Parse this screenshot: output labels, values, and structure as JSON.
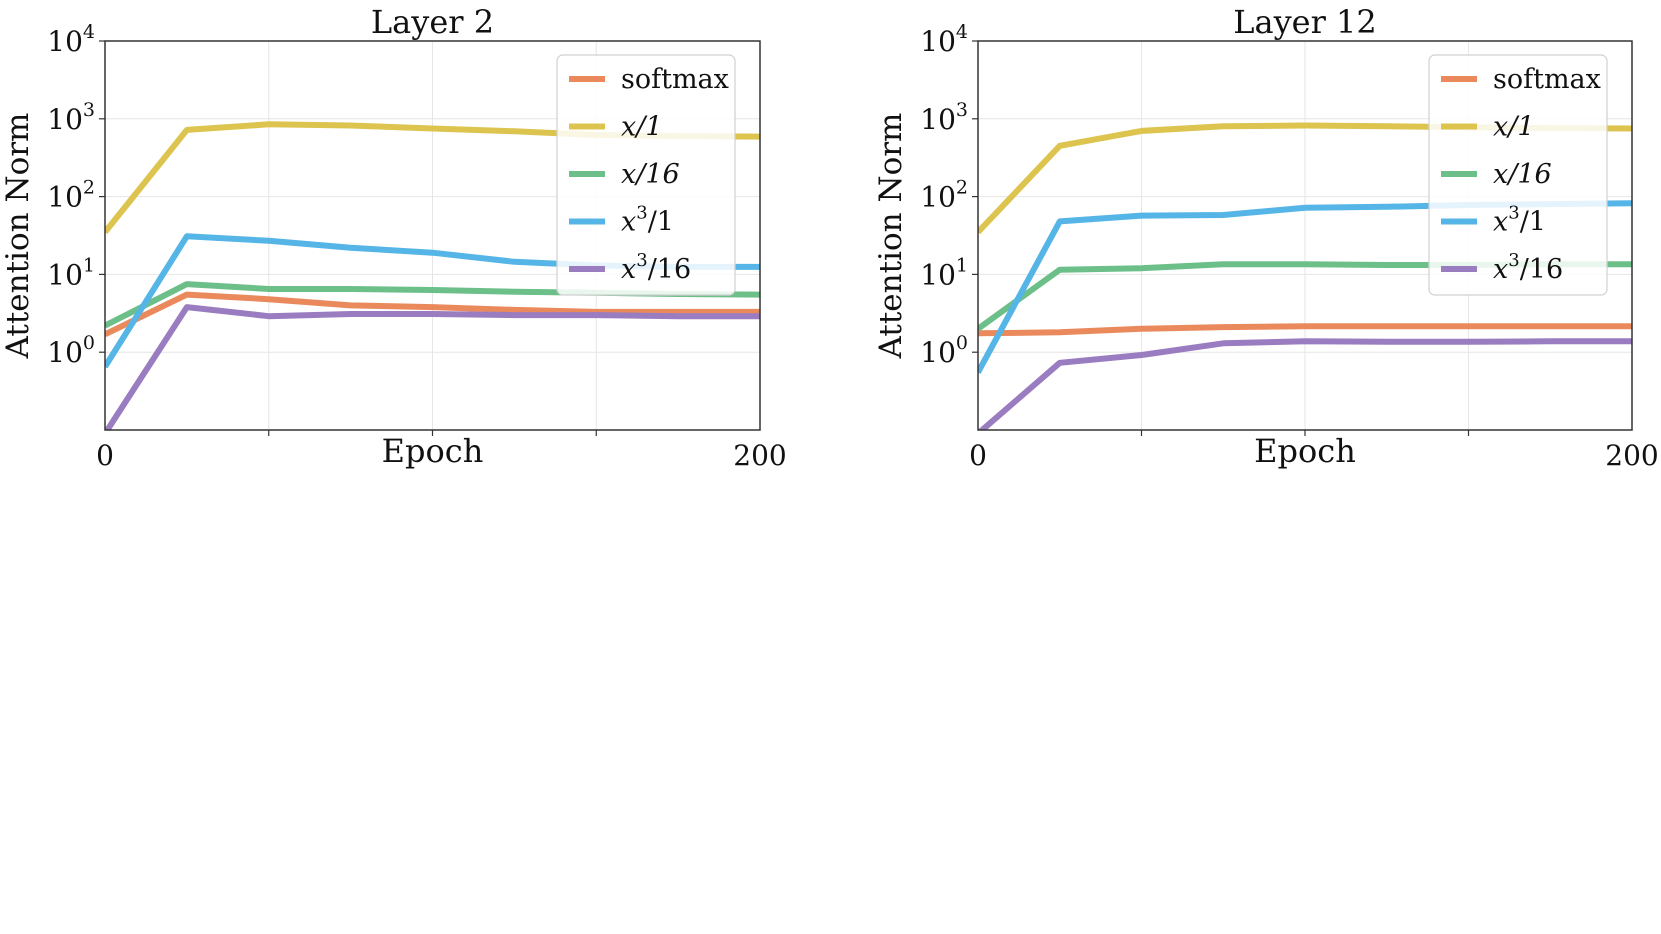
{
  "chart_data": [
    {
      "type": "line",
      "title": "Layer 2",
      "xlabel": "Epoch",
      "ylabel": "Attention Norm",
      "yscale": "log",
      "xlim": [
        0,
        200
      ],
      "ylim_exp": [
        -1.0,
        4
      ],
      "x_tick_labels": [
        "0",
        "200"
      ],
      "y_tick_labels": [
        {
          "base": "10",
          "exp": "0",
          "value_exp": 0
        },
        {
          "base": "10",
          "exp": "1",
          "value_exp": 1
        },
        {
          "base": "10",
          "exp": "2",
          "value_exp": 2
        },
        {
          "base": "10",
          "exp": "3",
          "value_exp": 3
        },
        {
          "base": "10",
          "exp": "4",
          "value_exp": 4
        }
      ],
      "legend_position": "top-right",
      "x": [
        0,
        25,
        50,
        75,
        100,
        125,
        150,
        175,
        200
      ],
      "series": [
        {
          "name": "softmax",
          "color": "#ea8a5c",
          "values": [
            1.7,
            5.5,
            4.8,
            4.0,
            3.8,
            3.5,
            3.3,
            3.3,
            3.3
          ]
        },
        {
          "name": "x/1",
          "color": "#dcc44e",
          "values": [
            35,
            720,
            850,
            820,
            750,
            690,
            620,
            600,
            590
          ]
        },
        {
          "name": "x/16",
          "color": "#6cbf88",
          "values": [
            2.2,
            7.5,
            6.5,
            6.5,
            6.3,
            6.0,
            5.8,
            5.6,
            5.5
          ]
        },
        {
          "name": "x^3/1",
          "color": "#55b5e6",
          "values": [
            0.65,
            31,
            27,
            22,
            19,
            14.5,
            13,
            12.5,
            12.5
          ]
        },
        {
          "name": "x^3/16",
          "color": "#9a7cc0",
          "values": [
            0.09,
            3.8,
            2.9,
            3.1,
            3.1,
            3.0,
            3.0,
            2.9,
            2.9
          ]
        }
      ],
      "legend": [
        {
          "base": "softmax",
          "sup": "",
          "rest": ""
        },
        {
          "base": "x/1",
          "sup": "",
          "rest": ""
        },
        {
          "base": "x/16",
          "sup": "",
          "rest": ""
        },
        {
          "base": "x",
          "sup": "3",
          "rest": "/1"
        },
        {
          "base": "x",
          "sup": "3",
          "rest": "/16"
        }
      ]
    },
    {
      "type": "line",
      "title": "Layer 12",
      "xlabel": "Epoch",
      "ylabel": "Attention Norm",
      "yscale": "log",
      "xlim": [
        0,
        200
      ],
      "ylim_exp": [
        -1.0,
        4
      ],
      "x_tick_labels": [
        "0",
        "200"
      ],
      "y_tick_labels": [
        {
          "base": "10",
          "exp": "0",
          "value_exp": 0
        },
        {
          "base": "10",
          "exp": "1",
          "value_exp": 1
        },
        {
          "base": "10",
          "exp": "2",
          "value_exp": 2
        },
        {
          "base": "10",
          "exp": "3",
          "value_exp": 3
        },
        {
          "base": "10",
          "exp": "4",
          "value_exp": 4
        }
      ],
      "legend_position": "top-right",
      "x": [
        0,
        25,
        50,
        75,
        100,
        125,
        150,
        175,
        200
      ],
      "series": [
        {
          "name": "softmax",
          "color": "#ea8a5c",
          "values": [
            1.75,
            1.8,
            2.0,
            2.1,
            2.15,
            2.15,
            2.15,
            2.15,
            2.15
          ]
        },
        {
          "name": "x/1",
          "color": "#dcc44e",
          "values": [
            35,
            450,
            700,
            800,
            820,
            800,
            780,
            760,
            750
          ]
        },
        {
          "name": "x/16",
          "color": "#6cbf88",
          "values": [
            2.0,
            11.5,
            12,
            13.5,
            13.5,
            13.2,
            13.2,
            13.5,
            13.5
          ]
        },
        {
          "name": "x^3/1",
          "color": "#55b5e6",
          "values": [
            0.55,
            48,
            57,
            58,
            72,
            74,
            78,
            80,
            82
          ]
        },
        {
          "name": "x^3/16",
          "color": "#9a7cc0",
          "values": [
            0.09,
            0.73,
            0.92,
            1.3,
            1.38,
            1.36,
            1.36,
            1.38,
            1.38
          ]
        }
      ],
      "legend": [
        {
          "base": "softmax",
          "sup": "",
          "rest": ""
        },
        {
          "base": "x/1",
          "sup": "",
          "rest": ""
        },
        {
          "base": "x/16",
          "sup": "",
          "rest": ""
        },
        {
          "base": "x",
          "sup": "3",
          "rest": "/1"
        },
        {
          "base": "x",
          "sup": "3",
          "rest": "/16"
        }
      ]
    }
  ]
}
